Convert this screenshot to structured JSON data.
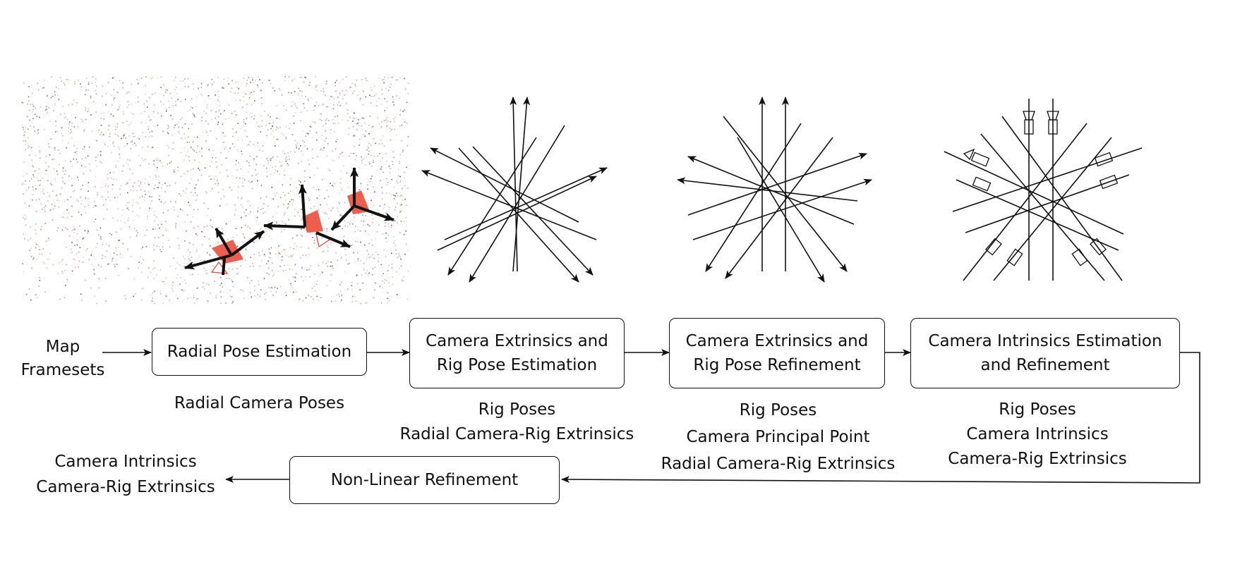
{
  "diagram": {
    "input_label": "Map\nFramesets",
    "steps": [
      {
        "label": "Radial Pose Estimation",
        "output": "Radial Camera Poses"
      },
      {
        "label": "Camera Extrinsics and\nRig Pose Estimation",
        "output": "Rig Poses\nRadial Camera-Rig Extrinsics"
      },
      {
        "label": "Camera Extrinsics and\nRig Pose Refinement",
        "output": "Rig Poses\nCamera Principal Point\nRadial Camera-Rig Extrinsics"
      },
      {
        "label": "Camera Intrinsics Estimation\nand Refinement",
        "output": "Rig Poses\nCamera Intrinsics\nCamera-Rig Extrinsics"
      }
    ],
    "final_step": {
      "label": "Non-Linear Refinement"
    },
    "final_output": "Camera Intrinsics\nCamera-Rig Extrinsics"
  },
  "colors": {
    "line": "#111111",
    "camera_red": "#e9432e",
    "point_cloud_warm": "#c9826e",
    "point_cloud_dark": "#3a3a3a"
  }
}
